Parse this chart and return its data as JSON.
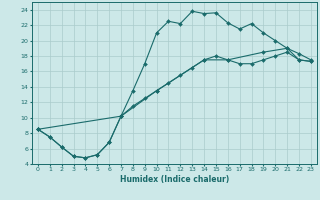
{
  "xlabel": "Humidex (Indice chaleur)",
  "ylabel": "",
  "xlim": [
    -0.5,
    23.5
  ],
  "ylim": [
    4,
    25
  ],
  "xticks": [
    0,
    1,
    2,
    3,
    4,
    5,
    6,
    7,
    8,
    9,
    10,
    11,
    12,
    13,
    14,
    15,
    16,
    17,
    18,
    19,
    20,
    21,
    22,
    23
  ],
  "yticks": [
    4,
    6,
    8,
    10,
    12,
    14,
    16,
    18,
    20,
    22,
    24
  ],
  "bg_color": "#cce8e8",
  "grid_color": "#aacccc",
  "line_color": "#1a6b6b",
  "line1_x": [
    0,
    1,
    2,
    3,
    4,
    5,
    6,
    7,
    8,
    9,
    10,
    11,
    12,
    13,
    14,
    15,
    16,
    17,
    18,
    19,
    20,
    21,
    22,
    23
  ],
  "line1_y": [
    8.5,
    7.5,
    6.2,
    5.0,
    4.8,
    5.2,
    6.8,
    10.2,
    13.5,
    17.0,
    21.0,
    22.5,
    22.2,
    23.8,
    23.5,
    23.6,
    22.3,
    21.5,
    22.2,
    21.0,
    20.0,
    19.0,
    18.3,
    17.5
  ],
  "line2_x": [
    0,
    1,
    2,
    3,
    4,
    5,
    6,
    7,
    8,
    9,
    10,
    11,
    12,
    13,
    14,
    15,
    16,
    17,
    18,
    19,
    20,
    21,
    22,
    23
  ],
  "line2_y": [
    8.5,
    7.5,
    6.2,
    5.0,
    4.8,
    5.2,
    6.8,
    10.2,
    11.5,
    12.5,
    13.5,
    14.5,
    15.5,
    16.5,
    17.5,
    18.0,
    17.5,
    17.0,
    17.0,
    17.5,
    18.0,
    18.5,
    17.5,
    17.3
  ],
  "line3_x": [
    0,
    7,
    10,
    14,
    16,
    19,
    21,
    22,
    23
  ],
  "line3_y": [
    8.5,
    10.2,
    13.5,
    17.5,
    17.5,
    18.5,
    19.0,
    17.5,
    17.3
  ]
}
